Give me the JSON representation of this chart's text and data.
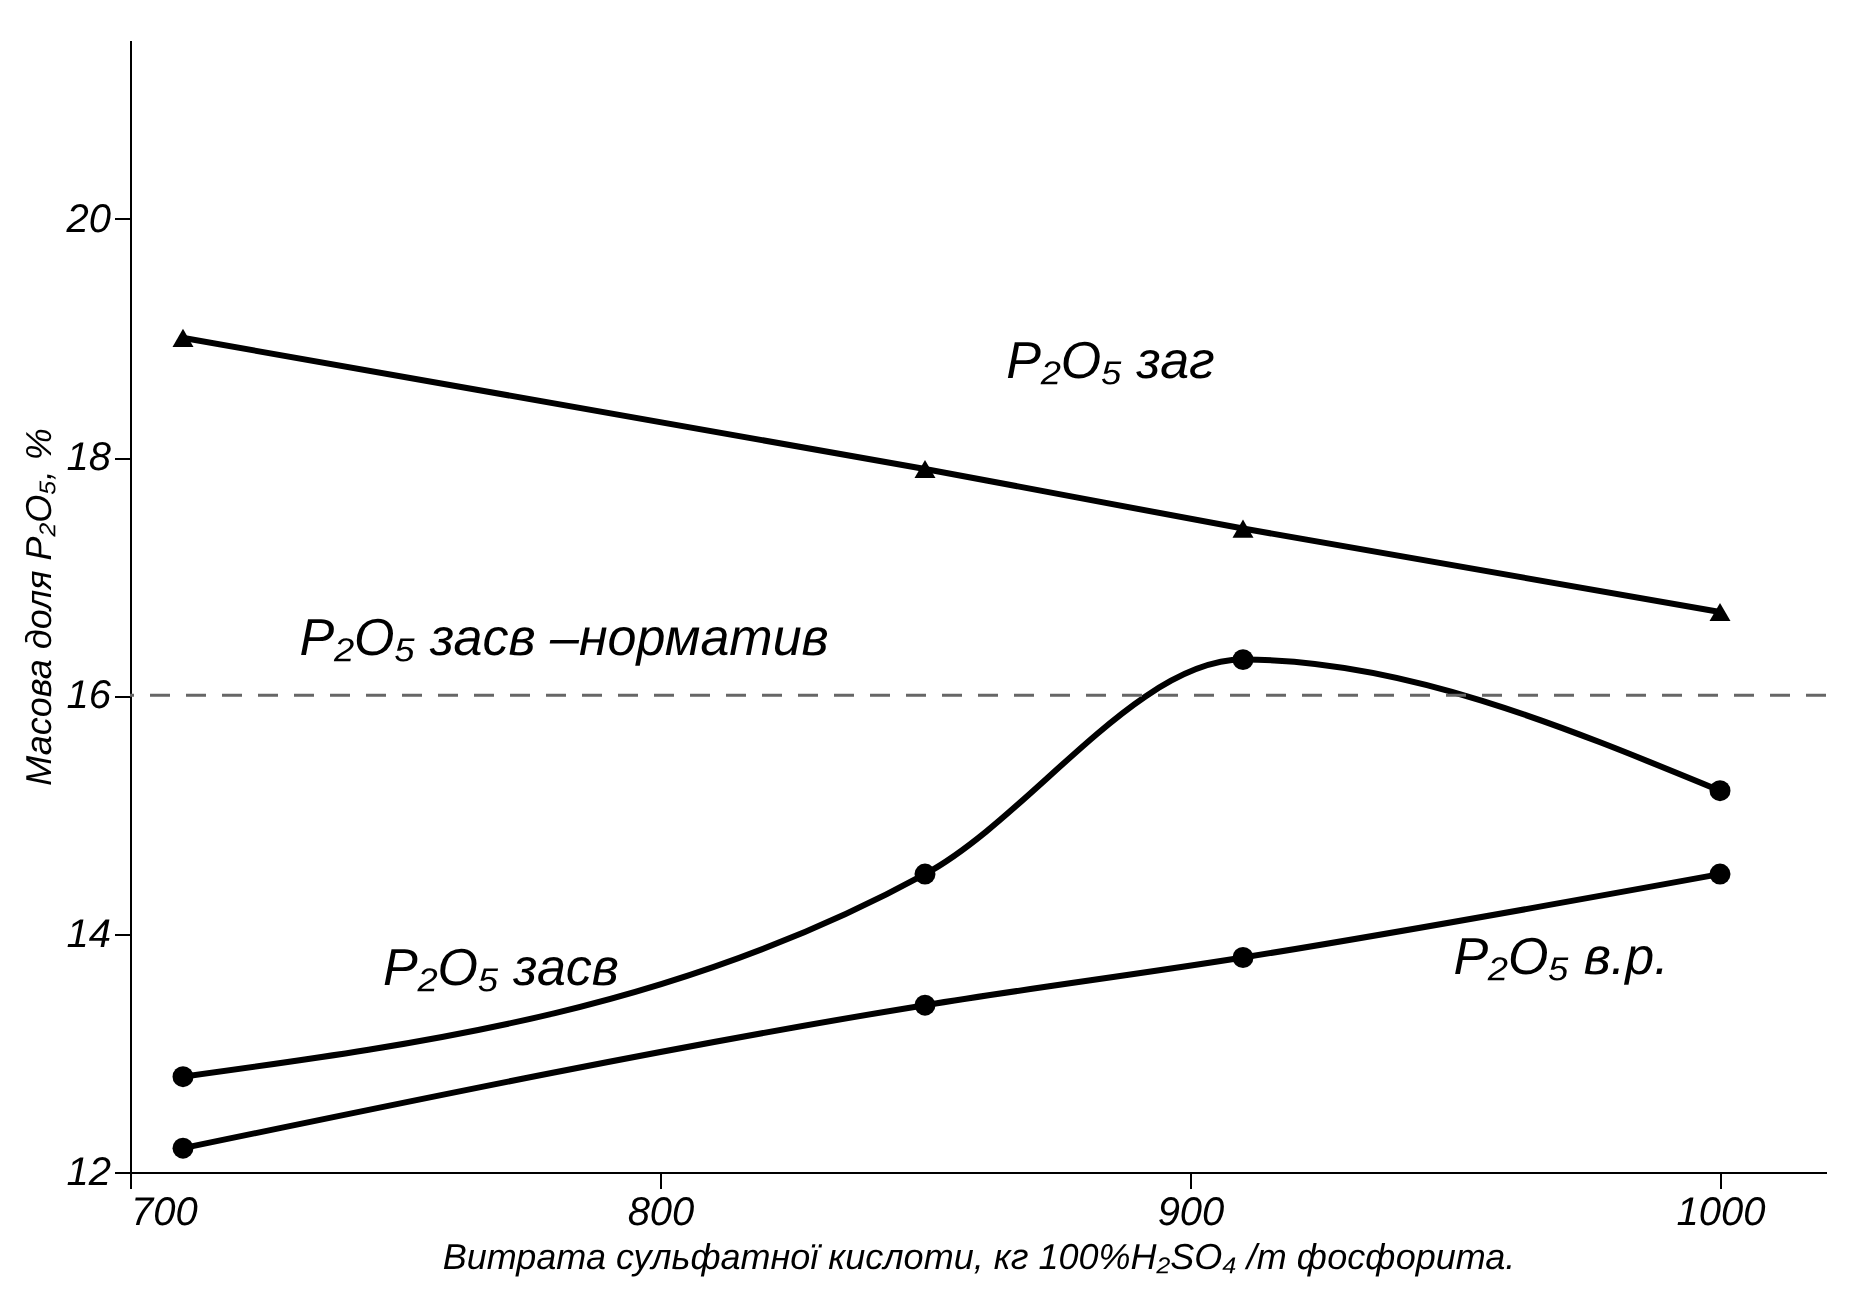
{
  "chart_data": {
    "type": "line",
    "xlabel": "Витрата сульфатної кислоти, кг 100%H₂SO₄ /т фосфорита.",
    "ylabel": "Масова доля P₂O₅, %",
    "x": [
      710,
      850,
      910,
      1000
    ],
    "series": [
      {
        "name": "P₂O₅ заг",
        "color": "#000000",
        "marker": "triangle",
        "values": [
          19.0,
          17.9,
          17.4,
          16.7
        ]
      },
      {
        "name": "P₂O₅ засв",
        "color": "#000000",
        "marker": "circle",
        "values": [
          12.8,
          14.5,
          16.3,
          15.2
        ]
      },
      {
        "name": "P₂O₅ в.р.",
        "color": "#000000",
        "marker": "circle",
        "values": [
          12.2,
          13.4,
          13.8,
          14.5
        ]
      }
    ],
    "xlim": [
      700,
      1020
    ],
    "xticks": [
      700,
      800,
      900,
      1000
    ],
    "ylim": [
      12,
      21.5
    ],
    "yticks": [
      12,
      14,
      16,
      18,
      20
    ],
    "ref_lines": [
      {
        "axis": "y",
        "value": 16,
        "label": "P₂O₅ засв –норматив",
        "color": "#666666",
        "line_style": "dashed"
      }
    ],
    "grid": false,
    "line_style": "solid"
  }
}
